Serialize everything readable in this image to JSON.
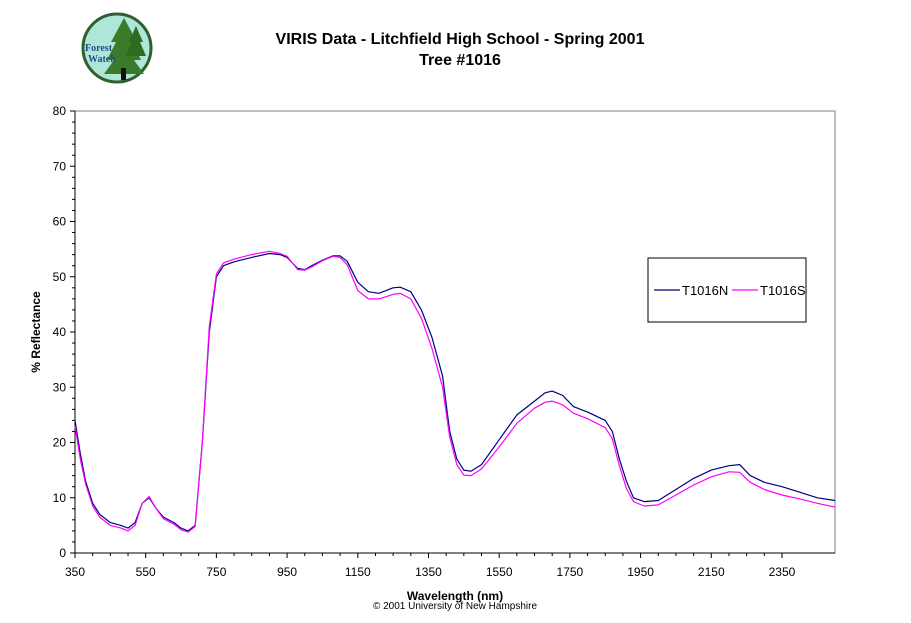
{
  "logo": {
    "text_line1": "Forest",
    "text_line2": "Watch",
    "icon": "tree-icon"
  },
  "header": {
    "title_line1": "VIRIS Data - Litchfield High School - Spring 2001",
    "title_line2": "Tree #1016"
  },
  "footer": {
    "copyright": "© 2001 University of New Hampshire"
  },
  "colors": {
    "series_n": "#000080",
    "series_s": "#ff00ff",
    "logo_bg": "#aee6d8",
    "logo_ring": "#2e5f2e"
  },
  "chart_data": {
    "type": "line",
    "xlabel": "Wavelength (nm)",
    "ylabel": "% Reflectance",
    "xlim": [
      350,
      2500
    ],
    "ylim": [
      0,
      80
    ],
    "x_ticks": [
      350,
      550,
      750,
      950,
      1150,
      1350,
      1550,
      1750,
      1950,
      2150,
      2350
    ],
    "y_ticks": [
      0,
      10,
      20,
      30,
      40,
      50,
      60,
      70,
      80
    ],
    "grid": false,
    "legend_position": "right",
    "series": [
      {
        "name": "T1016N",
        "color": "#000080",
        "points": [
          [
            350,
            24
          ],
          [
            365,
            18
          ],
          [
            380,
            13
          ],
          [
            400,
            9
          ],
          [
            420,
            7
          ],
          [
            450,
            5.5
          ],
          [
            480,
            5
          ],
          [
            500,
            4.5
          ],
          [
            520,
            5.5
          ],
          [
            540,
            9
          ],
          [
            560,
            10
          ],
          [
            580,
            8
          ],
          [
            600,
            6.5
          ],
          [
            630,
            5.5
          ],
          [
            650,
            4.5
          ],
          [
            670,
            4
          ],
          [
            690,
            5
          ],
          [
            710,
            20
          ],
          [
            730,
            40
          ],
          [
            750,
            50
          ],
          [
            770,
            52
          ],
          [
            800,
            52.7
          ],
          [
            850,
            53.5
          ],
          [
            900,
            54.2
          ],
          [
            930,
            54
          ],
          [
            950,
            53.5
          ],
          [
            980,
            51.5
          ],
          [
            1000,
            51.3
          ],
          [
            1020,
            52
          ],
          [
            1050,
            53
          ],
          [
            1080,
            53.8
          ],
          [
            1100,
            53.8
          ],
          [
            1120,
            52.8
          ],
          [
            1150,
            49
          ],
          [
            1180,
            47.3
          ],
          [
            1210,
            47
          ],
          [
            1250,
            48
          ],
          [
            1270,
            48.1
          ],
          [
            1300,
            47.3
          ],
          [
            1330,
            44
          ],
          [
            1360,
            39
          ],
          [
            1390,
            32
          ],
          [
            1410,
            22
          ],
          [
            1430,
            17
          ],
          [
            1450,
            15
          ],
          [
            1470,
            14.8
          ],
          [
            1500,
            16
          ],
          [
            1550,
            20.5
          ],
          [
            1600,
            25
          ],
          [
            1650,
            27.5
          ],
          [
            1680,
            29
          ],
          [
            1700,
            29.3
          ],
          [
            1730,
            28.5
          ],
          [
            1760,
            26.5
          ],
          [
            1800,
            25.5
          ],
          [
            1850,
            24
          ],
          [
            1870,
            22
          ],
          [
            1890,
            17
          ],
          [
            1910,
            13
          ],
          [
            1930,
            10
          ],
          [
            1960,
            9.3
          ],
          [
            2000,
            9.5
          ],
          [
            2050,
            11.5
          ],
          [
            2100,
            13.5
          ],
          [
            2150,
            15
          ],
          [
            2200,
            15.8
          ],
          [
            2230,
            16
          ],
          [
            2260,
            14
          ],
          [
            2300,
            12.8
          ],
          [
            2350,
            12
          ],
          [
            2400,
            11
          ],
          [
            2450,
            10
          ],
          [
            2500,
            9.5
          ]
        ]
      },
      {
        "name": "T1016S",
        "color": "#ff00ff",
        "points": [
          [
            350,
            23
          ],
          [
            365,
            17
          ],
          [
            380,
            12.5
          ],
          [
            400,
            8.5
          ],
          [
            420,
            6.5
          ],
          [
            450,
            5
          ],
          [
            480,
            4.5
          ],
          [
            500,
            4
          ],
          [
            520,
            5
          ],
          [
            540,
            9
          ],
          [
            560,
            10.2
          ],
          [
            580,
            8
          ],
          [
            600,
            6.2
          ],
          [
            630,
            5.2
          ],
          [
            650,
            4.2
          ],
          [
            670,
            3.8
          ],
          [
            690,
            4.8
          ],
          [
            710,
            20
          ],
          [
            730,
            41
          ],
          [
            750,
            50.5
          ],
          [
            770,
            52.5
          ],
          [
            800,
            53.2
          ],
          [
            850,
            54
          ],
          [
            900,
            54.6
          ],
          [
            930,
            54.2
          ],
          [
            950,
            53.7
          ],
          [
            980,
            51.3
          ],
          [
            1000,
            51.2
          ],
          [
            1020,
            51.8
          ],
          [
            1050,
            52.9
          ],
          [
            1080,
            53.7
          ],
          [
            1100,
            53.5
          ],
          [
            1120,
            52.2
          ],
          [
            1150,
            47.5
          ],
          [
            1180,
            46
          ],
          [
            1210,
            46
          ],
          [
            1250,
            46.8
          ],
          [
            1270,
            47
          ],
          [
            1300,
            46
          ],
          [
            1330,
            42.5
          ],
          [
            1360,
            37
          ],
          [
            1390,
            30
          ],
          [
            1410,
            21
          ],
          [
            1430,
            16
          ],
          [
            1450,
            14.1
          ],
          [
            1470,
            14
          ],
          [
            1500,
            15.2
          ],
          [
            1550,
            19.2
          ],
          [
            1600,
            23.5
          ],
          [
            1650,
            26.2
          ],
          [
            1680,
            27.3
          ],
          [
            1700,
            27.5
          ],
          [
            1730,
            26.8
          ],
          [
            1760,
            25.3
          ],
          [
            1800,
            24.3
          ],
          [
            1850,
            22.7
          ],
          [
            1870,
            20.7
          ],
          [
            1890,
            15.8
          ],
          [
            1910,
            11.7
          ],
          [
            1930,
            9.3
          ],
          [
            1960,
            8.5
          ],
          [
            2000,
            8.7
          ],
          [
            2050,
            10.5
          ],
          [
            2100,
            12.3
          ],
          [
            2150,
            13.8
          ],
          [
            2200,
            14.7
          ],
          [
            2230,
            14.6
          ],
          [
            2260,
            12.8
          ],
          [
            2300,
            11.5
          ],
          [
            2350,
            10.5
          ],
          [
            2400,
            9.8
          ],
          [
            2450,
            9
          ],
          [
            2500,
            8.3
          ]
        ]
      }
    ]
  }
}
